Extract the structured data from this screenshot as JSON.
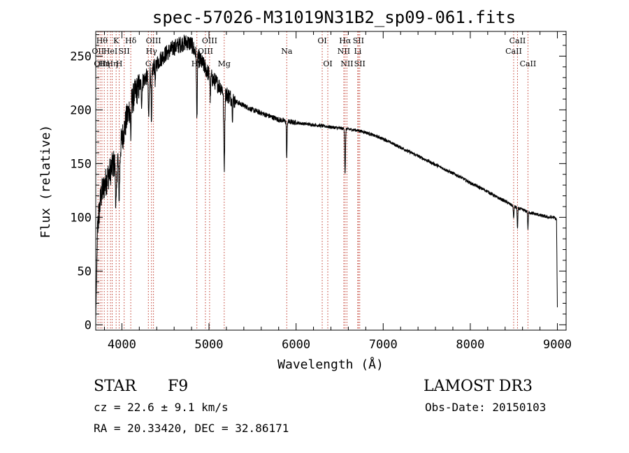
{
  "chart_data": {
    "type": "line",
    "title": "spec-57026-M31019N31B2_sp09-061.fits",
    "xlabel": "Wavelength (Å)",
    "ylabel": "Flux (relative)",
    "xlim": [
      3700,
      9100
    ],
    "ylim": [
      -5,
      273
    ],
    "xticks": [
      {
        "value": 4000,
        "label": "4000"
      },
      {
        "value": 5000,
        "label": "5000"
      },
      {
        "value": 6000,
        "label": "6000"
      },
      {
        "value": 7000,
        "label": "7000"
      },
      {
        "value": 8000,
        "label": "8000"
      },
      {
        "value": 9000,
        "label": "9000"
      }
    ],
    "yticks": [
      {
        "value": 0,
        "label": "0"
      },
      {
        "value": 50,
        "label": "50"
      },
      {
        "value": 100,
        "label": "100"
      },
      {
        "value": 150,
        "label": "150"
      },
      {
        "value": 200,
        "label": "200"
      },
      {
        "value": 250,
        "label": "250"
      }
    ],
    "continuum": {
      "x": [
        3700,
        3720,
        3740,
        3760,
        3780,
        3800,
        3840,
        3880,
        3920,
        3960,
        4000,
        4050,
        4100,
        4150,
        4200,
        4250,
        4300,
        4350,
        4400,
        4450,
        4500,
        4550,
        4600,
        4650,
        4700,
        4750,
        4800,
        4850,
        4900,
        4950,
        5000,
        5050,
        5100,
        5150,
        5200,
        5300,
        5400,
        5500,
        5600,
        5700,
        5800,
        5900,
        6000,
        6100,
        6200,
        6300,
        6400,
        6500,
        6600,
        6700,
        6800,
        6900,
        7000,
        7100,
        7200,
        7300,
        7400,
        7500,
        7600,
        7700,
        7800,
        7900,
        8000,
        8100,
        8200,
        8300,
        8400,
        8500,
        8600,
        8700,
        8800,
        8900,
        8960,
        8990,
        9000
      ],
      "y": [
        5,
        90,
        105,
        120,
        125,
        130,
        138,
        145,
        152,
        160,
        172,
        190,
        205,
        215,
        222,
        228,
        232,
        238,
        243,
        248,
        252,
        255,
        258,
        260,
        262,
        263,
        261,
        252,
        246,
        240,
        233,
        228,
        224,
        220,
        215,
        208,
        204,
        200,
        197,
        194,
        191,
        189,
        188,
        187,
        186,
        185,
        184,
        183,
        182,
        181,
        179,
        176,
        173,
        169,
        165,
        161,
        157,
        153,
        149,
        145,
        141,
        137,
        132,
        128,
        124,
        119,
        115,
        110,
        107,
        104,
        102,
        100,
        100,
        98,
        15
      ]
    },
    "absorption_features": [
      {
        "wl": 3934,
        "depth": 45,
        "width": 10
      },
      {
        "wl": 3969,
        "depth": 40,
        "width": 10
      },
      {
        "wl": 4102,
        "depth": 30,
        "width": 6
      },
      {
        "wl": 4227,
        "depth": 18,
        "width": 6
      },
      {
        "wl": 4308,
        "depth": 40,
        "width": 8
      },
      {
        "wl": 4340,
        "depth": 55,
        "width": 6
      },
      {
        "wl": 4384,
        "depth": 15,
        "width": 5
      },
      {
        "wl": 4861,
        "depth": 60,
        "width": 6
      },
      {
        "wl": 5015,
        "depth": 20,
        "width": 5
      },
      {
        "wl": 5175,
        "depth": 70,
        "width": 8
      },
      {
        "wl": 5270,
        "depth": 15,
        "width": 5
      },
      {
        "wl": 5893,
        "depth": 35,
        "width": 5
      },
      {
        "wl": 6563,
        "depth": 42,
        "width": 6
      },
      {
        "wl": 8498,
        "depth": 12,
        "width": 5
      },
      {
        "wl": 8542,
        "depth": 20,
        "width": 5
      },
      {
        "wl": 8662,
        "depth": 16,
        "width": 5
      }
    ],
    "reference_lines": [
      {
        "wl": 3726,
        "label": "OII",
        "row": 2
      },
      {
        "wl": 3750,
        "label": "OII",
        "row": 3
      },
      {
        "wl": 3771,
        "label": "Hθ",
        "row": 1
      },
      {
        "wl": 3798,
        "label": "Hη",
        "row": 3
      },
      {
        "wl": 3835,
        "label": "",
        "row": 0
      },
      {
        "wl": 3869,
        "label": "HeI",
        "row": 2
      },
      {
        "wl": 3889,
        "label": "Hη",
        "row": 3
      },
      {
        "wl": 3934,
        "label": "K",
        "row": 1
      },
      {
        "wl": 3969,
        "label": "H",
        "row": 3
      },
      {
        "wl": 4026,
        "label": "SII",
        "row": 2
      },
      {
        "wl": 4102,
        "label": "Hδ",
        "row": 1
      },
      {
        "wl": 4304,
        "label": "G",
        "row": 3
      },
      {
        "wl": 4340,
        "label": "Hγ",
        "row": 2
      },
      {
        "wl": 4363,
        "label": "OIII",
        "row": 1
      },
      {
        "wl": 4861,
        "label": "Hβ",
        "row": 3
      },
      {
        "wl": 4959,
        "label": "OIII",
        "row": 2
      },
      {
        "wl": 5007,
        "label": "OIII",
        "row": 1
      },
      {
        "wl": 5175,
        "label": "Mg",
        "row": 3
      },
      {
        "wl": 5893,
        "label": "Na",
        "row": 2
      },
      {
        "wl": 6300,
        "label": "OI",
        "row": 1
      },
      {
        "wl": 6364,
        "label": "OI",
        "row": 3
      },
      {
        "wl": 6548,
        "label": "NII",
        "row": 2
      },
      {
        "wl": 6563,
        "label": "Hα",
        "row": 1
      },
      {
        "wl": 6584,
        "label": "NII",
        "row": 3
      },
      {
        "wl": 6708,
        "label": "Li",
        "row": 2
      },
      {
        "wl": 6716,
        "label": "SII",
        "row": 1
      },
      {
        "wl": 6731,
        "label": "SII",
        "row": 3
      },
      {
        "wl": 8498,
        "label": "CaII",
        "row": 2
      },
      {
        "wl": 8542,
        "label": "CaII",
        "row": 1
      },
      {
        "wl": 8662,
        "label": "CaII",
        "row": 3
      }
    ]
  },
  "info": {
    "class_label": "STAR",
    "subclass": "F9",
    "survey": "LAMOST DR3",
    "cz": "cz = 22.6 ± 9.1 km/s",
    "obs_date": "Obs-Date: 20150103",
    "coords": "RA =  20.33420, DEC =  32.86171"
  }
}
